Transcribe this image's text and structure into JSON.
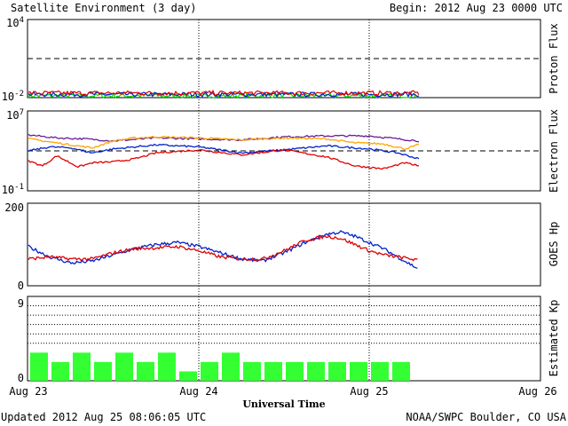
{
  "header": {
    "title": "Satellite Environment (3 day)",
    "begin": "Begin:  2012 Aug 23 0000 UTC"
  },
  "footer": {
    "updated": "Updated 2012 Aug 25 08:06:05 UTC",
    "credit": "NOAA/SWPC Boulder, CO USA"
  },
  "colors": {
    "red": "#e00000",
    "blue": "#0022cc",
    "green": "#00dd00",
    "orange": "#ffa500",
    "purple": "#6a1a9a",
    "kp": "#33ff33"
  },
  "chart_data": [
    {
      "type": "line",
      "id": "proton",
      "ylabel": "Proton Flux",
      "yscale": "log",
      "ylim_exp": [
        -2,
        4
      ],
      "ytick_labels": [
        {
          "base": "10",
          "exp": "4"
        },
        {
          "base": "10",
          "exp": "-2"
        }
      ],
      "threshold_exp": 1,
      "series": [
        {
          "color": "red",
          "level_exp": -1.65
        },
        {
          "color": "blue",
          "level_exp": -1.75
        },
        {
          "color": "green",
          "level_exp": -1.85
        }
      ],
      "data_end_hours": 55
    },
    {
      "type": "line",
      "id": "electron",
      "ylabel": "Electron Flux",
      "yscale": "log",
      "ylim_exp": [
        -1,
        7
      ],
      "ytick_labels": [
        {
          "base": "10",
          "exp": "7"
        },
        {
          "base": "10",
          "exp": "-1"
        }
      ],
      "threshold_exp": 3,
      "series": [
        {
          "color": "purple",
          "hours": [
            0,
            4,
            8,
            12,
            18,
            24,
            30,
            36,
            42,
            48,
            52,
            55
          ],
          "values_exp": [
            4.6,
            4.3,
            4.2,
            4.0,
            4.3,
            4.2,
            4.1,
            4.4,
            4.5,
            4.5,
            4.2,
            4.0
          ]
        },
        {
          "color": "orange",
          "hours": [
            0,
            3,
            6,
            9,
            12,
            15,
            18,
            24,
            30,
            36,
            42,
            46,
            50,
            53,
            55
          ],
          "values_exp": [
            4.2,
            3.9,
            3.6,
            3.3,
            4.0,
            4.3,
            4.4,
            4.3,
            4.1,
            4.3,
            4.2,
            3.8,
            3.7,
            3.2,
            3.6
          ]
        },
        {
          "color": "blue",
          "hours": [
            0,
            3,
            6,
            9,
            12,
            15,
            18,
            24,
            30,
            36,
            42,
            48,
            52,
            55
          ],
          "values_exp": [
            3.0,
            3.4,
            3.3,
            2.8,
            3.2,
            3.4,
            3.6,
            3.4,
            2.8,
            3.1,
            3.5,
            3.2,
            2.8,
            2.2
          ]
        },
        {
          "color": "red",
          "hours": [
            0,
            2,
            4,
            7,
            9,
            12,
            15,
            18,
            24,
            30,
            36,
            42,
            46,
            50,
            53,
            55
          ],
          "values_exp": [
            2.0,
            1.5,
            2.5,
            1.4,
            1.8,
            1.9,
            2.2,
            2.8,
            3.1,
            2.6,
            3.1,
            2.4,
            1.5,
            1.2,
            1.8,
            1.5
          ]
        }
      ],
      "data_end_hours": 55
    },
    {
      "type": "line",
      "id": "goes",
      "ylabel": "GOES Hp",
      "ylim": [
        0,
        200
      ],
      "yticks": [
        200,
        0
      ],
      "series": [
        {
          "color": "blue",
          "hours": [
            0,
            3,
            6,
            9,
            12,
            15,
            18,
            21,
            24,
            27,
            30,
            33,
            36,
            39,
            42,
            44,
            46,
            48,
            50,
            52,
            54,
            55
          ],
          "values": [
            95,
            70,
            55,
            60,
            75,
            90,
            100,
            105,
            95,
            80,
            65,
            60,
            80,
            105,
            125,
            130,
            120,
            105,
            90,
            70,
            50,
            40
          ]
        },
        {
          "color": "red",
          "hours": [
            0,
            3,
            6,
            9,
            12,
            15,
            18,
            21,
            24,
            27,
            30,
            33,
            36,
            39,
            42,
            44,
            46,
            48,
            50,
            52,
            54,
            55
          ],
          "values": [
            65,
            70,
            65,
            65,
            80,
            90,
            92,
            95,
            85,
            70,
            65,
            65,
            85,
            110,
            120,
            115,
            100,
            85,
            75,
            70,
            65,
            60
          ]
        }
      ]
    },
    {
      "type": "bar",
      "id": "kp",
      "ylabel": "Estimated Kp",
      "ylim": [
        0,
        9
      ],
      "yticks": [
        9,
        0
      ],
      "gridlines": [
        8,
        7,
        6,
        5,
        4
      ],
      "bin_hours": 3,
      "values": [
        3,
        2,
        3,
        2,
        3,
        2,
        3,
        1,
        2,
        3,
        2,
        2,
        2,
        2,
        2,
        2,
        2,
        2
      ]
    }
  ],
  "xaxis": {
    "title": "Universal Time",
    "labels": [
      "Aug 23",
      "Aug 24",
      "Aug 25",
      "Aug 26"
    ]
  }
}
